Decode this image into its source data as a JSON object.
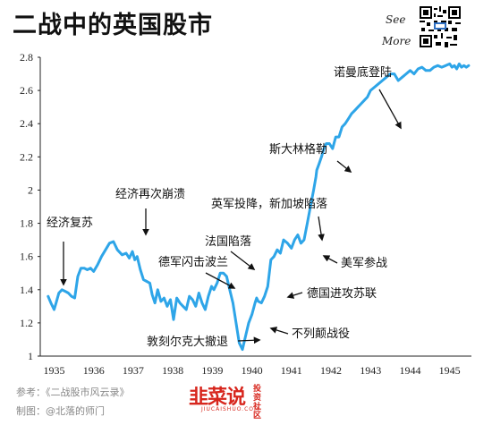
{
  "header": {
    "title": "二战中的英国股市",
    "see_more_line1": "See",
    "see_more_line2": "More"
  },
  "chart_data": {
    "type": "line",
    "title": "二战中的英国股市",
    "xlabel": "",
    "ylabel": "",
    "xlim": [
      1934.65,
      1945.55
    ],
    "ylim": [
      1,
      2.8
    ],
    "x_ticks": [
      "1935",
      "1936",
      "1937",
      "1938",
      "1939",
      "1940",
      "1941",
      "1942",
      "1943",
      "1944",
      "1945"
    ],
    "y_ticks": [
      "1",
      "1.2",
      "1.4",
      "1.6",
      "1.8",
      "2",
      "2.2",
      "2.4",
      "2.6",
      "2.8"
    ],
    "grid": false,
    "line_color": "#2ea5e8",
    "series": [
      {
        "x": [
          1934.85,
          1934.92,
          1935.0,
          1935.05,
          1935.12,
          1935.2,
          1935.28,
          1935.36,
          1935.44,
          1935.52,
          1935.6,
          1935.68,
          1935.76,
          1935.84,
          1935.92,
          1936.0,
          1936.1,
          1936.2,
          1936.3,
          1936.4,
          1936.5,
          1936.6,
          1936.72,
          1936.82,
          1936.9,
          1936.98,
          1937.04,
          1937.1,
          1937.18,
          1937.26,
          1937.34,
          1937.42,
          1937.48,
          1937.55,
          1937.62,
          1937.7,
          1937.78,
          1937.86,
          1937.94,
          1938.02,
          1938.1,
          1938.18,
          1938.26,
          1938.34,
          1938.42,
          1938.5,
          1938.58,
          1938.66,
          1938.74,
          1938.82,
          1938.9,
          1938.98,
          1939.04,
          1939.12,
          1939.2,
          1939.28,
          1939.36,
          1939.44,
          1939.52,
          1939.6,
          1939.68,
          1939.76,
          1939.84,
          1939.92,
          1940.0,
          1940.08,
          1940.12,
          1940.16,
          1940.24,
          1940.32,
          1940.4,
          1940.48,
          1940.56,
          1940.64,
          1940.72,
          1940.8,
          1940.9,
          1941.0,
          1941.08,
          1941.16,
          1941.24,
          1941.32,
          1941.4,
          1941.48,
          1941.56,
          1941.62,
          1941.64,
          1941.7,
          1941.76,
          1941.82,
          1941.88,
          1941.96,
          1942.04,
          1942.12,
          1942.2,
          1942.28,
          1942.36,
          1942.44,
          1942.52,
          1942.6,
          1942.68,
          1942.76,
          1942.84,
          1942.92,
          1943.0,
          1943.1,
          1943.2,
          1943.3,
          1943.4,
          1943.5,
          1943.6,
          1943.7,
          1943.8,
          1943.9,
          1944.0,
          1944.1,
          1944.2,
          1944.3,
          1944.4,
          1944.5,
          1944.6,
          1944.7,
          1944.8,
          1944.9,
          1945.0,
          1945.06,
          1945.12,
          1945.18,
          1945.24,
          1945.3,
          1945.36,
          1945.42,
          1945.48
        ],
        "values": [
          1.36,
          1.32,
          1.28,
          1.32,
          1.38,
          1.4,
          1.39,
          1.38,
          1.36,
          1.35,
          1.48,
          1.53,
          1.53,
          1.52,
          1.53,
          1.51,
          1.55,
          1.6,
          1.64,
          1.68,
          1.69,
          1.64,
          1.61,
          1.62,
          1.59,
          1.63,
          1.58,
          1.6,
          1.52,
          1.46,
          1.45,
          1.44,
          1.37,
          1.32,
          1.4,
          1.33,
          1.35,
          1.3,
          1.34,
          1.22,
          1.35,
          1.32,
          1.3,
          1.28,
          1.36,
          1.34,
          1.3,
          1.38,
          1.32,
          1.28,
          1.36,
          1.42,
          1.4,
          1.44,
          1.5,
          1.5,
          1.48,
          1.4,
          1.32,
          1.2,
          1.08,
          1.04,
          1.12,
          1.2,
          1.25,
          1.32,
          1.35,
          1.33,
          1.32,
          1.36,
          1.42,
          1.58,
          1.6,
          1.64,
          1.62,
          1.7,
          1.68,
          1.65,
          1.7,
          1.73,
          1.68,
          1.7,
          1.8,
          1.9,
          2.0,
          2.08,
          2.12,
          2.16,
          2.2,
          2.25,
          2.28,
          2.28,
          2.25,
          2.32,
          2.32,
          2.38,
          2.4,
          2.43,
          2.46,
          2.48,
          2.5,
          2.52,
          2.54,
          2.56,
          2.6,
          2.62,
          2.64,
          2.66,
          2.68,
          2.7,
          2.7,
          2.66,
          2.68,
          2.7,
          2.72,
          2.7,
          2.73,
          2.74,
          2.72,
          2.72,
          2.74,
          2.75,
          2.74,
          2.75,
          2.76,
          2.74,
          2.75,
          2.73,
          2.76,
          2.74,
          2.75,
          2.74,
          2.75
        ]
      }
    ],
    "annotations": [
      {
        "label": "经济复苏",
        "value": 1.36
      },
      {
        "label": "经济再次崩溃",
        "value": 1.6
      },
      {
        "label": "德军闪击波兰",
        "value": 1.4
      },
      {
        "label": "法国陷落",
        "value": 1.5
      },
      {
        "label": "敦刻尔克大撤退",
        "value": 1.04
      },
      {
        "label": "不列颠战役",
        "value": 1.32
      },
      {
        "label": "德国进攻苏联",
        "value": 1.36
      },
      {
        "label": "美军参战",
        "value": 1.6
      },
      {
        "label": "英军投降，新加坡陷落",
        "value": 1.7
      },
      {
        "label": "斯大林格勒",
        "value": 2.02
      },
      {
        "label": "诺曼底登陆",
        "value": 2.55
      }
    ]
  },
  "footer": {
    "source": "参考：《二战股市风云录》",
    "credit": "制图：@北落的师门"
  },
  "brand": {
    "main": "韭菜说",
    "side1": "投资",
    "side2": "社区",
    "url": "JIUCAISHUO.COM",
    "accent_color": "#d7261d"
  }
}
